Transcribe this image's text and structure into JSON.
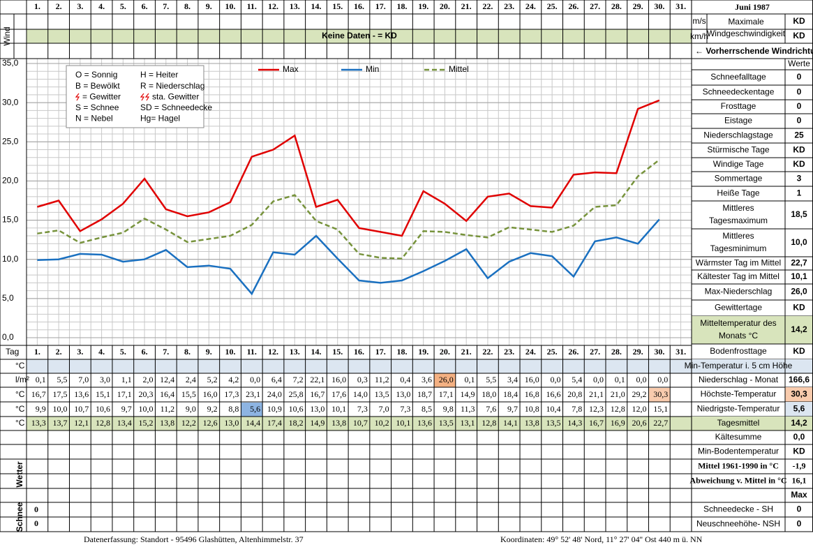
{
  "header": {
    "title": "Juni 1987",
    "wind_label": "Wind",
    "unit_ms": "m/s",
    "unit_kmh": "km/h",
    "max_wind_label": [
      "Maximale",
      "Windgeschwindigkeit"
    ],
    "max_wind_ms": "KD",
    "max_wind_kmh": "KD",
    "no_data": "Keine Daten -  = KD",
    "wind_direction": "← Vorherrschende Windrichtung",
    "values_header": "Werte"
  },
  "chart_data": {
    "type": "line",
    "categories": [
      "1.",
      "2.",
      "3.",
      "4.",
      "5.",
      "6.",
      "7.",
      "8.",
      "9.",
      "10.",
      "11.",
      "12.",
      "13.",
      "14.",
      "15.",
      "16.",
      "17.",
      "18.",
      "19.",
      "20.",
      "21.",
      "22.",
      "23.",
      "24.",
      "25.",
      "26.",
      "27.",
      "28.",
      "29.",
      "30.",
      "31."
    ],
    "ylim": [
      0,
      35
    ],
    "yticks": [
      {
        "value": 0,
        "label": "0,0"
      },
      {
        "value": 5,
        "label": "5,0"
      },
      {
        "value": 10,
        "label": "10,0"
      },
      {
        "value": 15,
        "label": "15,0"
      },
      {
        "value": 20,
        "label": "20,0"
      },
      {
        "value": 25,
        "label": "25,0"
      },
      {
        "value": 30,
        "label": "30,0"
      },
      {
        "value": 35,
        "label": "35,0"
      }
    ],
    "grid": true,
    "series": [
      {
        "name": "Max",
        "color": "#e00000",
        "dash": false,
        "values": [
          16.7,
          17.5,
          13.6,
          15.1,
          17.1,
          20.3,
          16.4,
          15.5,
          16.0,
          17.3,
          23.1,
          24.0,
          25.8,
          16.7,
          17.6,
          14.0,
          13.5,
          13.0,
          18.7,
          17.1,
          14.9,
          18.0,
          18.4,
          16.8,
          16.6,
          20.8,
          21.1,
          21.0,
          29.2,
          30.3,
          null
        ],
        "value_labels": [
          "16,7",
          "17,5",
          "13,6",
          "15,1",
          "17,1",
          "20,3",
          "16,4",
          "15,5",
          "16,0",
          "17,3",
          "23,1",
          "24,0",
          "25,8",
          "16,7",
          "17,6",
          "14,0",
          "13,5",
          "13,0",
          "18,7",
          "17,1",
          "14,9",
          "18,0",
          "18,4",
          "16,8",
          "16,6",
          "20,8",
          "21,1",
          "21,0",
          "29,2",
          "30,3",
          null
        ]
      },
      {
        "name": "Min",
        "color": "#1a70c0",
        "dash": false,
        "values": [
          9.9,
          10.0,
          10.7,
          10.6,
          9.7,
          10.0,
          11.2,
          9.0,
          9.2,
          8.8,
          5.6,
          10.9,
          10.6,
          13.0,
          10.1,
          7.3,
          7.0,
          7.3,
          8.5,
          9.8,
          11.3,
          7.6,
          9.7,
          10.8,
          10.4,
          7.8,
          12.3,
          12.8,
          12.0,
          15.1,
          null
        ],
        "value_labels": [
          "9,9",
          "10,0",
          "10,7",
          "10,6",
          "9,7",
          "10,0",
          "11,2",
          "9,0",
          "9,2",
          "8,8",
          "5,6",
          "10,9",
          "10,6",
          "13,0",
          "10,1",
          "7,3",
          "7,0",
          "7,3",
          "8,5",
          "9,8",
          "11,3",
          "7,6",
          "9,7",
          "10,8",
          "10,4",
          "7,8",
          "12,3",
          "12,8",
          "12,0",
          "15,1",
          null
        ]
      },
      {
        "name": "Mittel",
        "color": "#77933c",
        "dash": true,
        "values": [
          13.3,
          13.7,
          12.1,
          12.8,
          13.4,
          15.2,
          13.8,
          12.2,
          12.6,
          13.0,
          14.4,
          17.4,
          18.2,
          14.9,
          13.8,
          10.7,
          10.2,
          10.1,
          13.6,
          13.5,
          13.1,
          12.8,
          14.1,
          13.8,
          13.5,
          14.3,
          16.7,
          16.9,
          20.6,
          22.7,
          null
        ],
        "value_labels": [
          "13,3",
          "13,7",
          "12,1",
          "12,8",
          "13,4",
          "15,2",
          "13,8",
          "12,2",
          "12,6",
          "13,0",
          "14,4",
          "17,4",
          "18,2",
          "14,9",
          "13,8",
          "10,7",
          "10,2",
          "10,1",
          "13,6",
          "13,5",
          "13,1",
          "12,8",
          "14,1",
          "13,8",
          "13,5",
          "14,3",
          "16,7",
          "16,9",
          "20,6",
          "22,7",
          null
        ]
      }
    ]
  },
  "weather_legend": [
    "O = Sonnig",
    "H = Heiter",
    "B = Bewölkt",
    "R = Niederschlag",
    "= Gewitter",
    "sta. Gewitter",
    "S = Schnee",
    "SD = Schneedecke",
    "N = Nebel",
    "Hg= Hagel"
  ],
  "table": {
    "day_label": "Tag",
    "unit_min5": "°C",
    "unit_precip": "l/m²",
    "unit_max": "°C",
    "unit_min": "°C",
    "unit_mean": "°C",
    "precip": [
      "0,1",
      "5,5",
      "7,0",
      "3,0",
      "1,1",
      "2,0",
      "12,4",
      "2,4",
      "5,2",
      "4,2",
      "0,0",
      "6,4",
      "7,2",
      "22,1",
      "16,0",
      "0,3",
      "11,2",
      "0,4",
      "3,6",
      "26,0",
      "0,1",
      "5,5",
      "3,4",
      "16,0",
      "0,0",
      "5,4",
      "0,0",
      "0,1",
      "0,0",
      "0,0"
    ],
    "wetter_label": "Wetter",
    "schnee_label": "Schnee",
    "snow_sh": "0",
    "snow_nsh": "0"
  },
  "side_stats": [
    {
      "label": "Schneefalltage",
      "value": "0"
    },
    {
      "label": "Schneedeckentage",
      "value": "0"
    },
    {
      "label": "Frosttage",
      "value": "0"
    },
    {
      "label": "Eistage",
      "value": "0"
    },
    {
      "label": "Niederschlagstage",
      "value": "25"
    },
    {
      "label": "Stürmische Tage",
      "value": "KD"
    },
    {
      "label": "Windige Tage",
      "value": "KD"
    },
    {
      "label": "Sommertage",
      "value": "3"
    },
    {
      "label": "Heiße Tage",
      "value": "1"
    },
    {
      "label": [
        "Mittleres",
        "Tagesmaximum"
      ],
      "value": "18,5"
    },
    {
      "label": [
        "Mittleres",
        "Tagesminimum"
      ],
      "value": "10,0"
    },
    {
      "label": "Wärmster Tag im Mittel",
      "value": "22,7"
    },
    {
      "label": "Kältester Tag im Mittel",
      "value": "10,1"
    },
    {
      "label": "Max-Niederschlag",
      "value": "26,0"
    },
    {
      "label": "Gewittertage",
      "value": "KD"
    },
    {
      "label": [
        "Mitteltemperatur des",
        "Monats °C"
      ],
      "value": "14,2",
      "fill": "#d8e4bc"
    },
    {
      "label": "Bodenfrosttage",
      "value": "KD"
    }
  ],
  "lower_stats": [
    {
      "label": "Min-Temperatur i. 5 cm Höhe",
      "fill": "#dce6f1"
    },
    {
      "label": "Niederschlag - Monat",
      "value": "166,6"
    },
    {
      "label": "Höchste-Temperatur",
      "value": "30,3",
      "value_fill": "#f8cbad"
    },
    {
      "label": "Niedrigste-Temperatur",
      "value": "5,6",
      "value_fill": "#dce6f1"
    },
    {
      "label": "Tagesmittel",
      "value": "14,2",
      "fill": "#d8e4bc"
    },
    {
      "label": "Kältesumme",
      "value": "0,0"
    },
    {
      "label": "Min-Bodentemperatur",
      "value": "KD"
    },
    {
      "label": "Mittel 1961-1990 in °C",
      "value": "-1,9",
      "serif": true
    },
    {
      "label": "Abweichung v. Mittel in °C",
      "value": "16,1",
      "serif": true,
      "color": "#ff0000"
    },
    {
      "value": "Max"
    },
    {
      "label": "Schneedecke -  SH",
      "value": "0"
    },
    {
      "label": "Neuschneehöhe- NSH",
      "value": "0"
    }
  ],
  "footer": {
    "left": "Datenerfassung:  Standort -  95496  Glashütten, Altenhimmelstr. 37",
    "right": "Koordinaten:  49° 52' 48' Nord,  11° 27' 04'' Ost   440 m ü. NN"
  }
}
